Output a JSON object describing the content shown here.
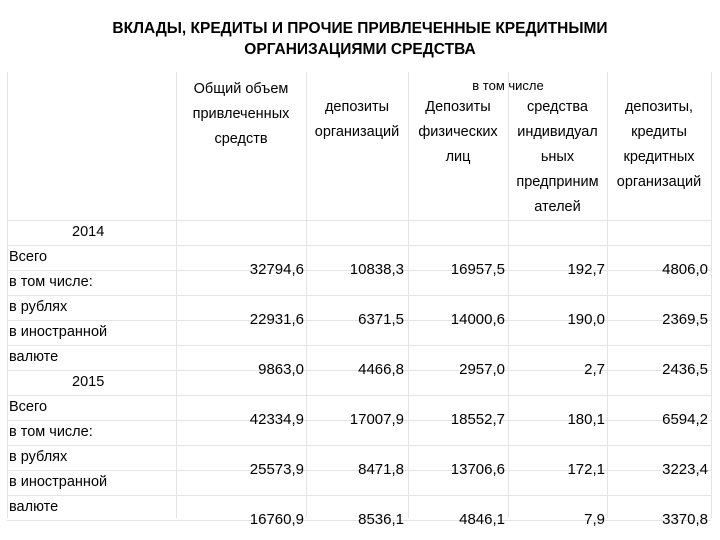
{
  "title": {
    "line1": "ВКЛАДЫ, КРЕДИТЫ И ПРОЧИЕ ПРИВЛЕЧЕННЫЕ КРЕДИТНЫМИ",
    "line2": "ОРГАНИЗАЦИЯМИ СРЕДСТВА"
  },
  "header": {
    "total": [
      "Общий объем",
      "привлеченных",
      "средств"
    ],
    "including": "в том числе",
    "col1": [
      "депозиты",
      "организаций"
    ],
    "col2": [
      "Депозиты",
      "физических",
      "лиц"
    ],
    "col3": [
      "средства",
      "индивидуал",
      "ьных",
      "предприним",
      "ателей"
    ],
    "col4": [
      "депозиты,",
      "кредиты",
      "кредитных",
      "организаций"
    ]
  },
  "rows": [
    {
      "label": "2014",
      "type": "year",
      "values": [
        "",
        "",
        "",
        "",
        ""
      ]
    },
    {
      "label": "Всего",
      "values": [
        "32794,6",
        "10838,3",
        "16957,5",
        "192,7",
        "4806,0"
      ]
    },
    {
      "label": "в том числе:",
      "values": [
        "",
        "",
        "",
        "",
        ""
      ]
    },
    {
      "label": "в рублях",
      "values": [
        "22931,6",
        "6371,5",
        "14000,6",
        "190,0",
        "2369,5"
      ]
    },
    {
      "label": "в иностранной",
      "values": [
        "",
        "",
        "",
        "",
        ""
      ]
    },
    {
      "label": "валюте",
      "values": [
        "9863,0",
        "4466,8",
        "2957,0",
        "2,7",
        "2436,5"
      ]
    },
    {
      "label": "2015",
      "type": "year",
      "values": [
        "",
        "",
        "",
        "",
        ""
      ]
    },
    {
      "label": "Всего",
      "values": [
        "42334,9",
        "17007,9",
        "18552,7",
        "180,1",
        "6594,2"
      ]
    },
    {
      "label": "в том числе:",
      "values": [
        "",
        "",
        "",
        "",
        ""
      ]
    },
    {
      "label": "в рублях",
      "values": [
        "25573,9",
        "8471,8",
        "13706,6",
        "172,1",
        "3223,4"
      ]
    },
    {
      "label": "в иностранной",
      "values": [
        "",
        "",
        "",
        "",
        ""
      ]
    },
    {
      "label": "валюте",
      "values": [
        "16760,9",
        "8536,1",
        "4846,1",
        "7,9",
        "3370,8"
      ]
    }
  ]
}
